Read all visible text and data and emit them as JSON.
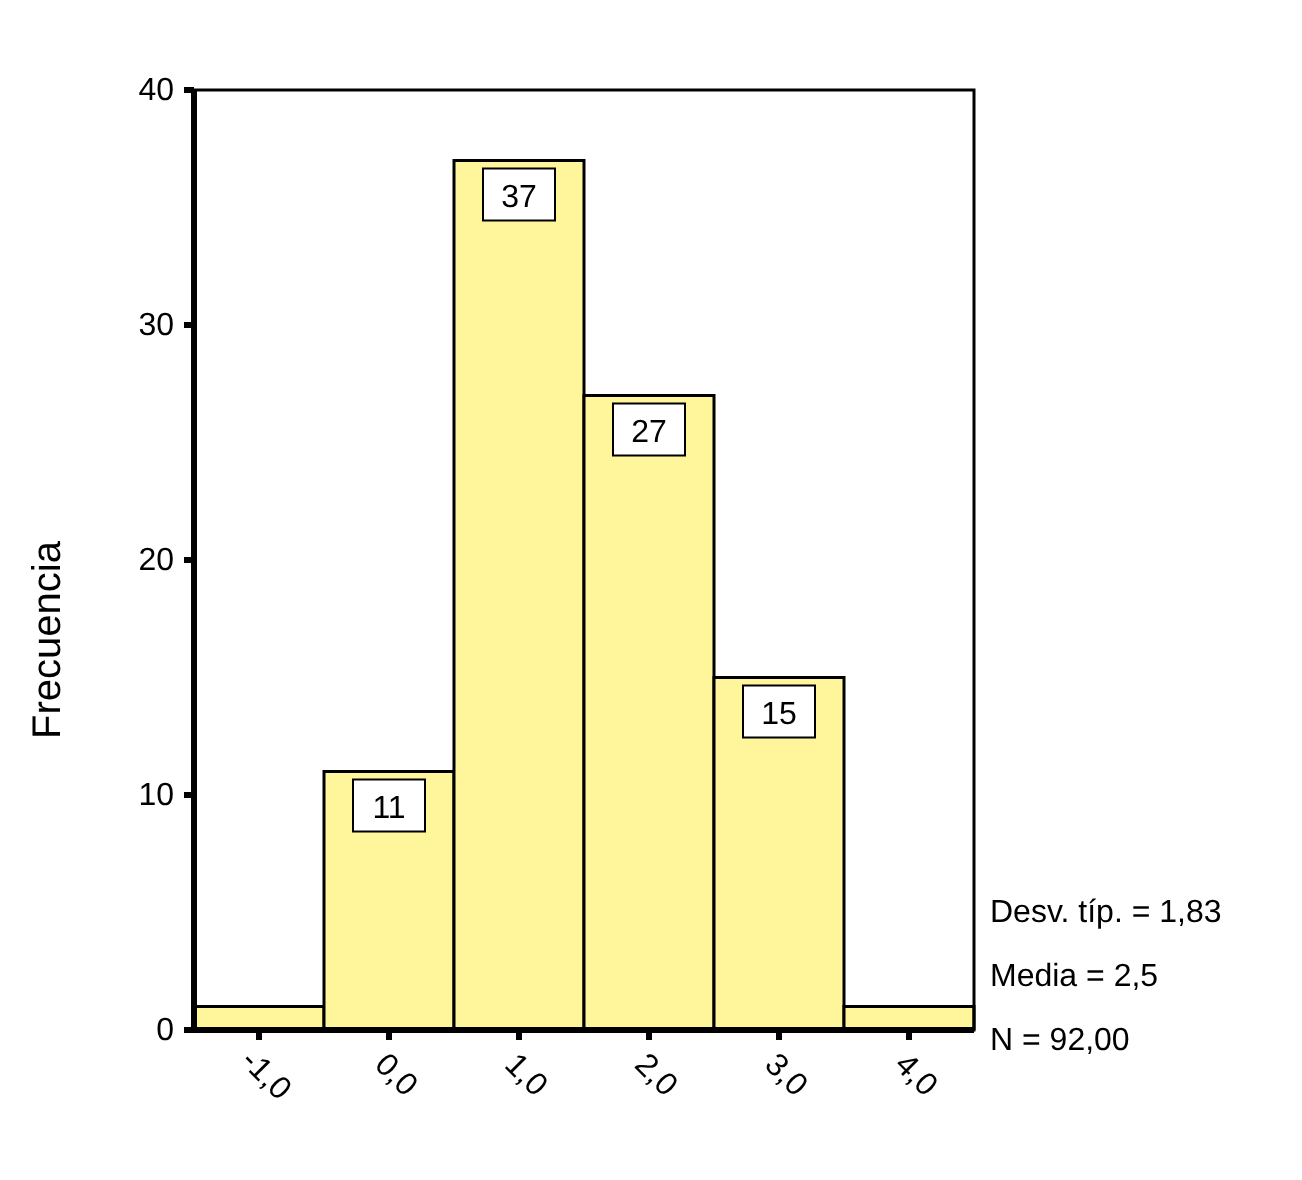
{
  "chart_data": {
    "type": "histogram",
    "ylabel": "Frecuencia",
    "bins": [
      -1.5,
      -0.5,
      0.5,
      1.5,
      2.5,
      3.5,
      4.5
    ],
    "values": [
      1,
      11,
      37,
      27,
      15,
      1
    ],
    "value_labels": [
      null,
      "11",
      "37",
      "27",
      "15",
      null
    ],
    "color": "#fff59a",
    "xlim": [
      -1.5,
      4.5
    ],
    "xticks": [
      {
        "value": -1,
        "label": "-1,0"
      },
      {
        "value": 0,
        "label": "0,0"
      },
      {
        "value": 1,
        "label": "1,0"
      },
      {
        "value": 2,
        "label": "2,0"
      },
      {
        "value": 3,
        "label": "3,0"
      },
      {
        "value": 4,
        "label": "4,0"
      }
    ],
    "ylim": [
      0,
      40
    ],
    "yticks": [
      0,
      10,
      20,
      30,
      40
    ],
    "annotations": [
      "Desv. típ. = 1,83",
      "Media = 2,5",
      "N = 92,00"
    ]
  }
}
